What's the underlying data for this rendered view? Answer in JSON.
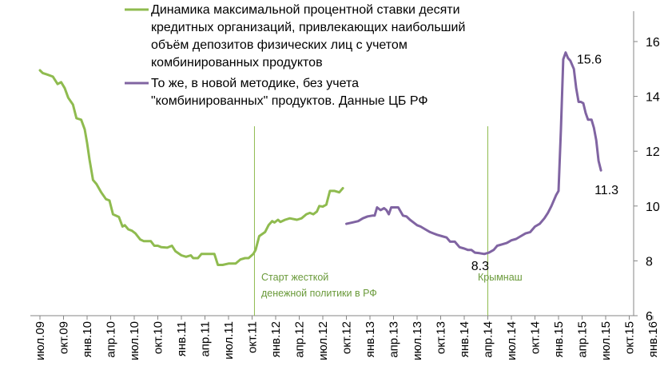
{
  "chart_data": {
    "type": "line",
    "x_ticks": [
      "июл.09",
      "окт.09",
      "янв.10",
      "апр.10",
      "июл.10",
      "окт.10",
      "янв.11",
      "апр.11",
      "июл.11",
      "окт.11",
      "янв.12",
      "апр.12",
      "июл.12",
      "окт.12",
      "янв.13",
      "апр.13",
      "июл.13",
      "окт.13",
      "янв.14",
      "апр.14",
      "июл.14",
      "окт.14",
      "янв.15",
      "апр.15",
      "июл.15",
      "окт.15",
      "янв.16"
    ],
    "y_ticks": [
      "6",
      "8",
      "10",
      "12",
      "14",
      "16"
    ],
    "ylim": [
      6,
      17.1
    ],
    "xlim": [
      0,
      26
    ],
    "y_axis_position": "right",
    "series": [
      {
        "name": "Динамика максимальной процентной ставки десяти кредитных организаций, привлекающих наибольший объём депозитов физических лиц с учетом комбинированных продуктов",
        "color": "#8fbb4f",
        "points": [
          [
            0.0,
            14.95
          ],
          [
            0.12,
            14.85
          ],
          [
            0.3,
            14.8
          ],
          [
            0.55,
            14.72
          ],
          [
            0.75,
            14.45
          ],
          [
            0.9,
            14.52
          ],
          [
            1.05,
            14.3
          ],
          [
            1.2,
            13.95
          ],
          [
            1.4,
            13.7
          ],
          [
            1.55,
            13.2
          ],
          [
            1.75,
            13.15
          ],
          [
            1.9,
            12.8
          ],
          [
            2.0,
            12.3
          ],
          [
            2.1,
            11.7
          ],
          [
            2.25,
            10.95
          ],
          [
            2.4,
            10.8
          ],
          [
            2.6,
            10.5
          ],
          [
            2.8,
            10.25
          ],
          [
            2.95,
            10.2
          ],
          [
            3.1,
            9.7
          ],
          [
            3.35,
            9.6
          ],
          [
            3.5,
            9.25
          ],
          [
            3.6,
            9.3
          ],
          [
            3.75,
            9.15
          ],
          [
            3.9,
            9.1
          ],
          [
            4.05,
            9.0
          ],
          [
            4.25,
            8.78
          ],
          [
            4.4,
            8.72
          ],
          [
            4.7,
            8.72
          ],
          [
            4.85,
            8.55
          ],
          [
            5.0,
            8.55
          ],
          [
            5.15,
            8.5
          ],
          [
            5.4,
            8.48
          ],
          [
            5.6,
            8.55
          ],
          [
            5.75,
            8.35
          ],
          [
            6.0,
            8.2
          ],
          [
            6.2,
            8.15
          ],
          [
            6.4,
            8.2
          ],
          [
            6.5,
            8.1
          ],
          [
            6.7,
            8.1
          ],
          [
            6.85,
            8.25
          ],
          [
            7.1,
            8.25
          ],
          [
            7.4,
            8.25
          ],
          [
            7.55,
            7.85
          ],
          [
            7.75,
            7.85
          ],
          [
            8.0,
            7.9
          ],
          [
            8.3,
            7.9
          ],
          [
            8.5,
            8.05
          ],
          [
            8.7,
            8.1
          ],
          [
            8.85,
            8.1
          ],
          [
            9.05,
            8.25
          ],
          [
            9.15,
            8.4
          ],
          [
            9.3,
            8.9
          ],
          [
            9.55,
            9.05
          ],
          [
            9.7,
            9.3
          ],
          [
            9.85,
            9.45
          ],
          [
            9.95,
            9.4
          ],
          [
            10.1,
            9.5
          ],
          [
            10.2,
            9.42
          ],
          [
            10.4,
            9.5
          ],
          [
            10.6,
            9.55
          ],
          [
            10.9,
            9.5
          ],
          [
            11.1,
            9.55
          ],
          [
            11.3,
            9.7
          ],
          [
            11.45,
            9.75
          ],
          [
            11.6,
            9.7
          ],
          [
            11.75,
            9.8
          ],
          [
            11.85,
            10.0
          ],
          [
            12.0,
            9.98
          ],
          [
            12.15,
            10.05
          ],
          [
            12.3,
            10.55
          ],
          [
            12.5,
            10.55
          ],
          [
            12.7,
            10.5
          ],
          [
            12.85,
            10.65
          ]
        ]
      },
      {
        "name": "То же, в новой методике, без учета \"комбинированных\" продуктов. Данные ЦБ РФ",
        "color": "#8064a2",
        "points": [
          [
            13.0,
            9.35
          ],
          [
            13.25,
            9.4
          ],
          [
            13.5,
            9.45
          ],
          [
            13.7,
            9.55
          ],
          [
            13.9,
            9.62
          ],
          [
            14.1,
            9.65
          ],
          [
            14.2,
            9.65
          ],
          [
            14.3,
            9.95
          ],
          [
            14.45,
            9.85
          ],
          [
            14.6,
            9.92
          ],
          [
            14.7,
            9.85
          ],
          [
            14.8,
            9.7
          ],
          [
            14.9,
            9.95
          ],
          [
            15.05,
            9.95
          ],
          [
            15.2,
            9.95
          ],
          [
            15.4,
            9.65
          ],
          [
            15.55,
            9.62
          ],
          [
            15.7,
            9.5
          ],
          [
            15.85,
            9.4
          ],
          [
            16.0,
            9.3
          ],
          [
            16.15,
            9.25
          ],
          [
            16.35,
            9.15
          ],
          [
            16.55,
            9.05
          ],
          [
            16.7,
            9.0
          ],
          [
            16.85,
            8.95
          ],
          [
            17.05,
            8.9
          ],
          [
            17.25,
            8.85
          ],
          [
            17.4,
            8.7
          ],
          [
            17.6,
            8.7
          ],
          [
            17.8,
            8.5
          ],
          [
            18.0,
            8.45
          ],
          [
            18.15,
            8.4
          ],
          [
            18.3,
            8.4
          ],
          [
            18.45,
            8.3
          ],
          [
            18.65,
            8.28
          ],
          [
            18.85,
            8.25
          ],
          [
            19.05,
            8.3
          ],
          [
            19.25,
            8.4
          ],
          [
            19.4,
            8.55
          ],
          [
            19.6,
            8.6
          ],
          [
            19.8,
            8.65
          ],
          [
            20.0,
            8.75
          ],
          [
            20.2,
            8.8
          ],
          [
            20.4,
            8.9
          ],
          [
            20.6,
            9.0
          ],
          [
            20.8,
            9.05
          ],
          [
            21.0,
            9.25
          ],
          [
            21.2,
            9.35
          ],
          [
            21.4,
            9.55
          ],
          [
            21.55,
            9.75
          ],
          [
            21.7,
            10.0
          ],
          [
            21.9,
            10.4
          ],
          [
            22.0,
            10.55
          ],
          [
            22.1,
            12.8
          ],
          [
            22.2,
            15.35
          ],
          [
            22.3,
            15.6
          ],
          [
            22.4,
            15.4
          ],
          [
            22.5,
            15.3
          ],
          [
            22.65,
            15.0
          ],
          [
            22.75,
            14.3
          ],
          [
            22.85,
            13.8
          ],
          [
            22.95,
            13.8
          ],
          [
            23.05,
            13.75
          ],
          [
            23.15,
            13.4
          ],
          [
            23.25,
            13.15
          ],
          [
            23.4,
            13.15
          ],
          [
            23.5,
            12.85
          ],
          [
            23.6,
            12.4
          ],
          [
            23.7,
            11.65
          ],
          [
            23.8,
            11.3
          ]
        ]
      }
    ],
    "annotations": [
      {
        "text": "15.6",
        "x": 22.3,
        "y": 15.6
      },
      {
        "text": "11.3",
        "x": 23.8,
        "y": 11.3
      },
      {
        "text": "8.3",
        "x": 18.5,
        "y": 8.3
      }
    ],
    "events": [
      {
        "x": 9.1,
        "lines": [
          "Старт жесткой",
          "денежной политики в РФ"
        ],
        "color": "#8fbb4f"
      },
      {
        "x": 19.0,
        "lines": [
          "Крымнаш"
        ],
        "color": "#8fbb4f"
      }
    ],
    "legend_placement": "top-left",
    "grid": false
  }
}
